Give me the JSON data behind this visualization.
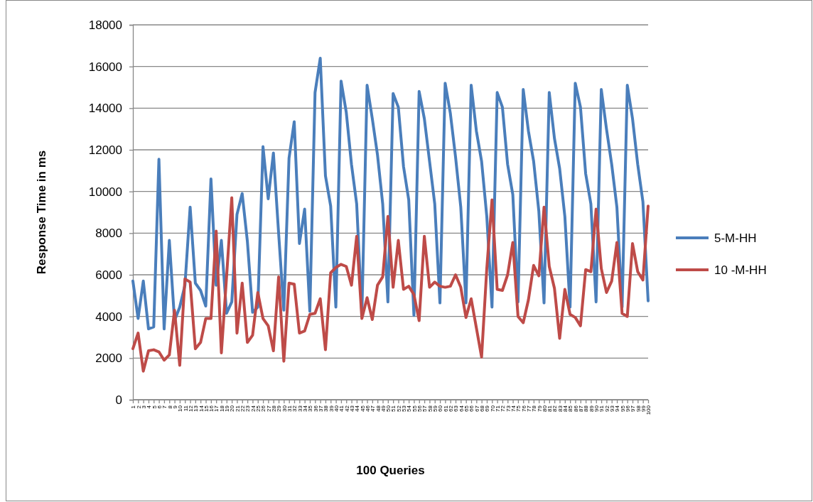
{
  "chart_data": {
    "type": "line",
    "xlabel": "100 Queries",
    "ylabel": "Response Time in ms",
    "categories": [
      "1",
      "2",
      "3",
      "4",
      "5",
      "6",
      "7",
      "8",
      "9",
      "10",
      "11",
      "12",
      "13",
      "14",
      "15",
      "16",
      "17",
      "18",
      "19",
      "20",
      "21",
      "22",
      "23",
      "24",
      "25",
      "26",
      "27",
      "28",
      "29",
      "30",
      "31",
      "32",
      "33",
      "34",
      "35",
      "36",
      "37",
      "38",
      "39",
      "40",
      "41",
      "42",
      "43",
      "44",
      "45",
      "46",
      "47",
      "48",
      "49",
      "50",
      "51",
      "52",
      "53",
      "54",
      "55",
      "56",
      "57",
      "58",
      "59",
      "60",
      "61",
      "62",
      "63",
      "64",
      "65",
      "66",
      "67",
      "68",
      "69",
      "70",
      "71",
      "72",
      "73",
      "74",
      "75",
      "76",
      "77",
      "78",
      "79",
      "80",
      "81",
      "82",
      "83",
      "84",
      "85",
      "86",
      "87",
      "88",
      "89",
      "90",
      "91",
      "92",
      "93",
      "94",
      "95",
      "96",
      "97",
      "98",
      "99",
      "100"
    ],
    "series": [
      {
        "name": "5-M-HH",
        "color": "#4a7ebb",
        "values": [
          5700,
          3900,
          5700,
          3400,
          3500,
          11550,
          3400,
          7650,
          3800,
          4450,
          5500,
          9250,
          5600,
          5250,
          4500,
          10600,
          5500,
          7650,
          4150,
          4700,
          8900,
          9900,
          7600,
          4200,
          4450,
          12150,
          9650,
          11850,
          8000,
          4300,
          11600,
          13350,
          7500,
          9150,
          4250,
          14750,
          16400,
          10750,
          9300,
          4450,
          15300,
          13800,
          11300,
          9400,
          4100,
          15100,
          13500,
          11750,
          9400,
          4700,
          14700,
          14050,
          11200,
          9600,
          4050,
          14800,
          13500,
          11450,
          9400,
          4650,
          15200,
          13750,
          11650,
          9250,
          4650,
          15100,
          12900,
          11450,
          8800,
          4450,
          14750,
          14050,
          11300,
          9850,
          4700,
          14900,
          12900,
          11450,
          9050,
          4650,
          14750,
          12550,
          11100,
          8800,
          4450,
          15200,
          14050,
          10850,
          9400,
          4700,
          14900,
          13000,
          11300,
          9250,
          4450,
          15100,
          13500,
          11300,
          9500,
          4750
        ]
      },
      {
        "name": "10 -M-HH",
        "color": "#be4b48",
        "values": [
          2450,
          3200,
          1370,
          2350,
          2400,
          2300,
          1900,
          2150,
          4300,
          1650,
          5800,
          5650,
          2450,
          2750,
          3900,
          3900,
          8100,
          2250,
          5900,
          9700,
          3200,
          5600,
          2750,
          3100,
          5150,
          3900,
          3550,
          2350,
          5900,
          1850,
          5600,
          5550,
          3200,
          3300,
          4100,
          4150,
          4850,
          2400,
          6100,
          6350,
          6500,
          6400,
          5500,
          7850,
          3900,
          4900,
          3850,
          5500,
          5900,
          8800,
          5400,
          7650,
          5300,
          5450,
          5050,
          3800,
          7850,
          5400,
          5650,
          5450,
          5400,
          5450,
          6000,
          5400,
          3950,
          4850,
          3450,
          2050,
          6300,
          9600,
          5300,
          5250,
          6000,
          7550,
          4000,
          3700,
          4800,
          6450,
          5950,
          9250,
          6400,
          5350,
          2950,
          5300,
          4100,
          3950,
          3550,
          6250,
          6150,
          9150,
          6300,
          5150,
          5700,
          7550,
          4150,
          4000,
          7500,
          6150,
          5750,
          9300
        ]
      }
    ],
    "ylim": [
      0,
      18000
    ],
    "yticks": [
      0,
      2000,
      4000,
      6000,
      8000,
      10000,
      12000,
      14000,
      16000,
      18000
    ],
    "grid": "y",
    "legend": "right",
    "marker": "none",
    "line_style": "solid"
  }
}
